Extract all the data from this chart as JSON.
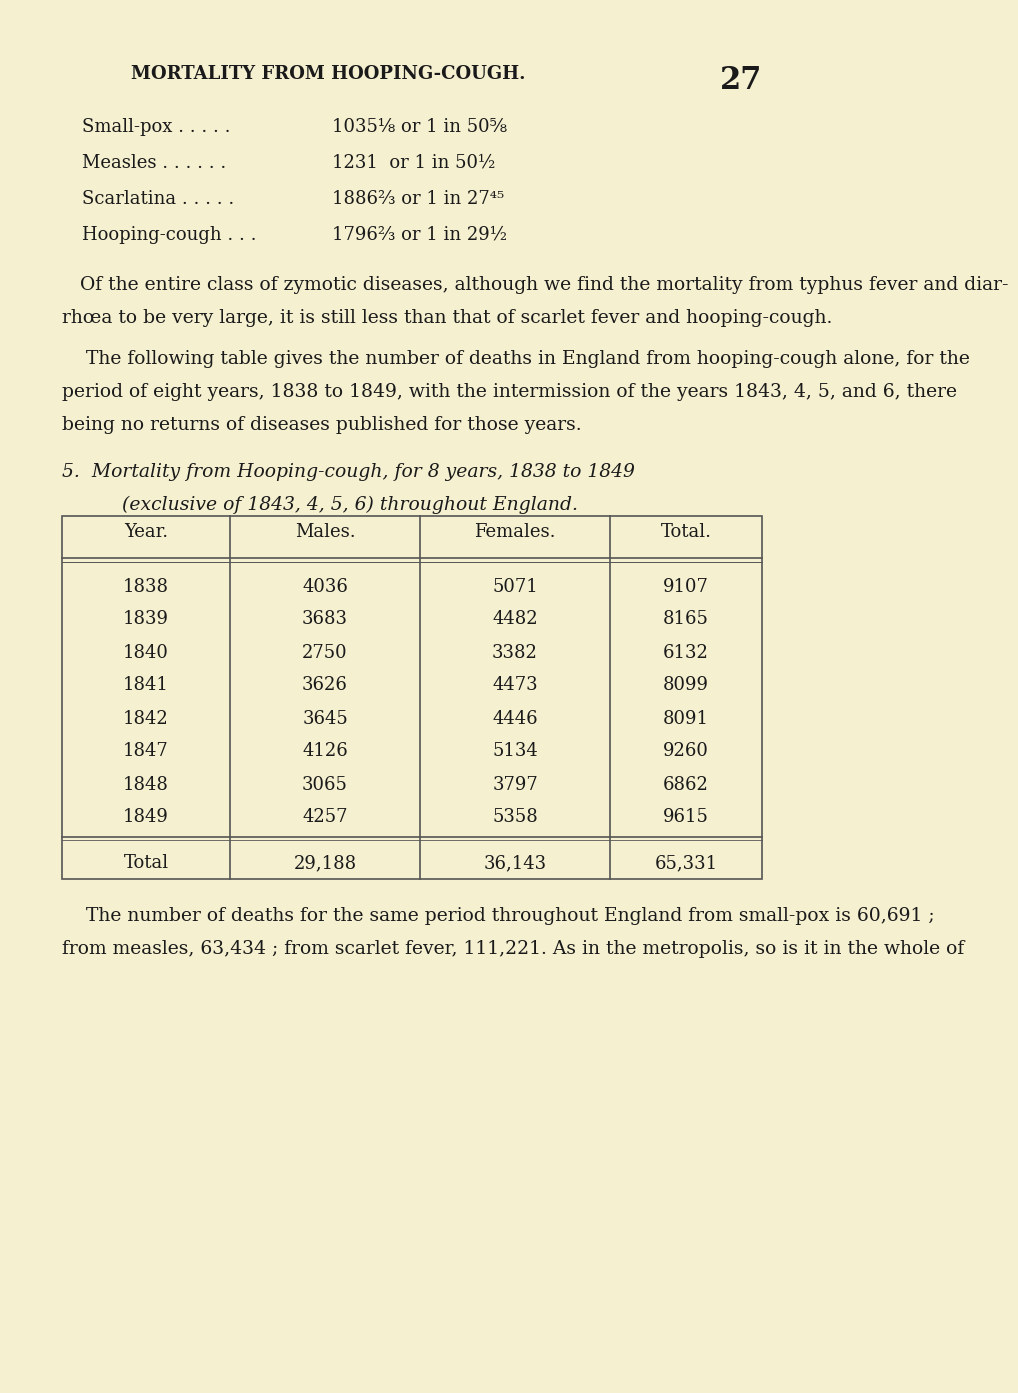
{
  "bg_color": "#f5f0d0",
  "title": "MORTALITY FROM HOOPING-COUGH.",
  "page_number": "27",
  "stats_lines": [
    {
      "label": "Small-pox . . . . .",
      "value": "1035⅛ or 1 in 50⅝"
    },
    {
      "label": "Measles . . . . . .",
      "value": "1231  or 1 in 50½"
    },
    {
      "label": "Scarlatina . . . . .",
      "value": "1886⅔ or 1 in 27⁴⁵"
    },
    {
      "label": "Hooping-cough . . .",
      "value": "1796⅔ or 1 in 29½"
    }
  ],
  "para1_lines": [
    "Of the entire class of zymotic diseases, although we find the mortality from typhus fever and diar-",
    "rhœa to be very large, it is still less than that of scarlet fever and hooping-cough."
  ],
  "para2_lines": [
    "    The following table gives the number of deaths in England from hooping-cough alone, for the",
    "period of eight years, 1838 to 1849, with the intermission of the years 1843, 4, 5, and 6, there",
    "being no returns of diseases published for those years."
  ],
  "table_caption_line1": "5.  Mortality from Hooping-cough, for 8 years, 1838 to 1849",
  "table_caption_line2": "        (exclusive of 1843, 4, 5, 6) throughout England.",
  "table_headers": [
    "Year.",
    "Males.",
    "Females.",
    "Total."
  ],
  "table_rows": [
    [
      "1838",
      "4036",
      "5071",
      "9107"
    ],
    [
      "1839",
      "3683",
      "4482",
      "8165"
    ],
    [
      "1840",
      "2750",
      "3382",
      "6132"
    ],
    [
      "1841",
      "3626",
      "4473",
      "8099"
    ],
    [
      "1842",
      "3645",
      "4446",
      "8091"
    ],
    [
      "1847",
      "4126",
      "5134",
      "9260"
    ],
    [
      "1848",
      "3065",
      "3797",
      "6862"
    ],
    [
      "1849",
      "4257",
      "5358",
      "9615"
    ]
  ],
  "table_total_row": [
    "Total",
    "29,188",
    "36,143",
    "65,331"
  ],
  "para3_lines": [
    "    The number of deaths for the same period throughout England from small-pox is 60,691 ;",
    "from measles, 63,434 ; from scarlet fever, 111,221. As in the metropolis, so is it in the whole of"
  ]
}
